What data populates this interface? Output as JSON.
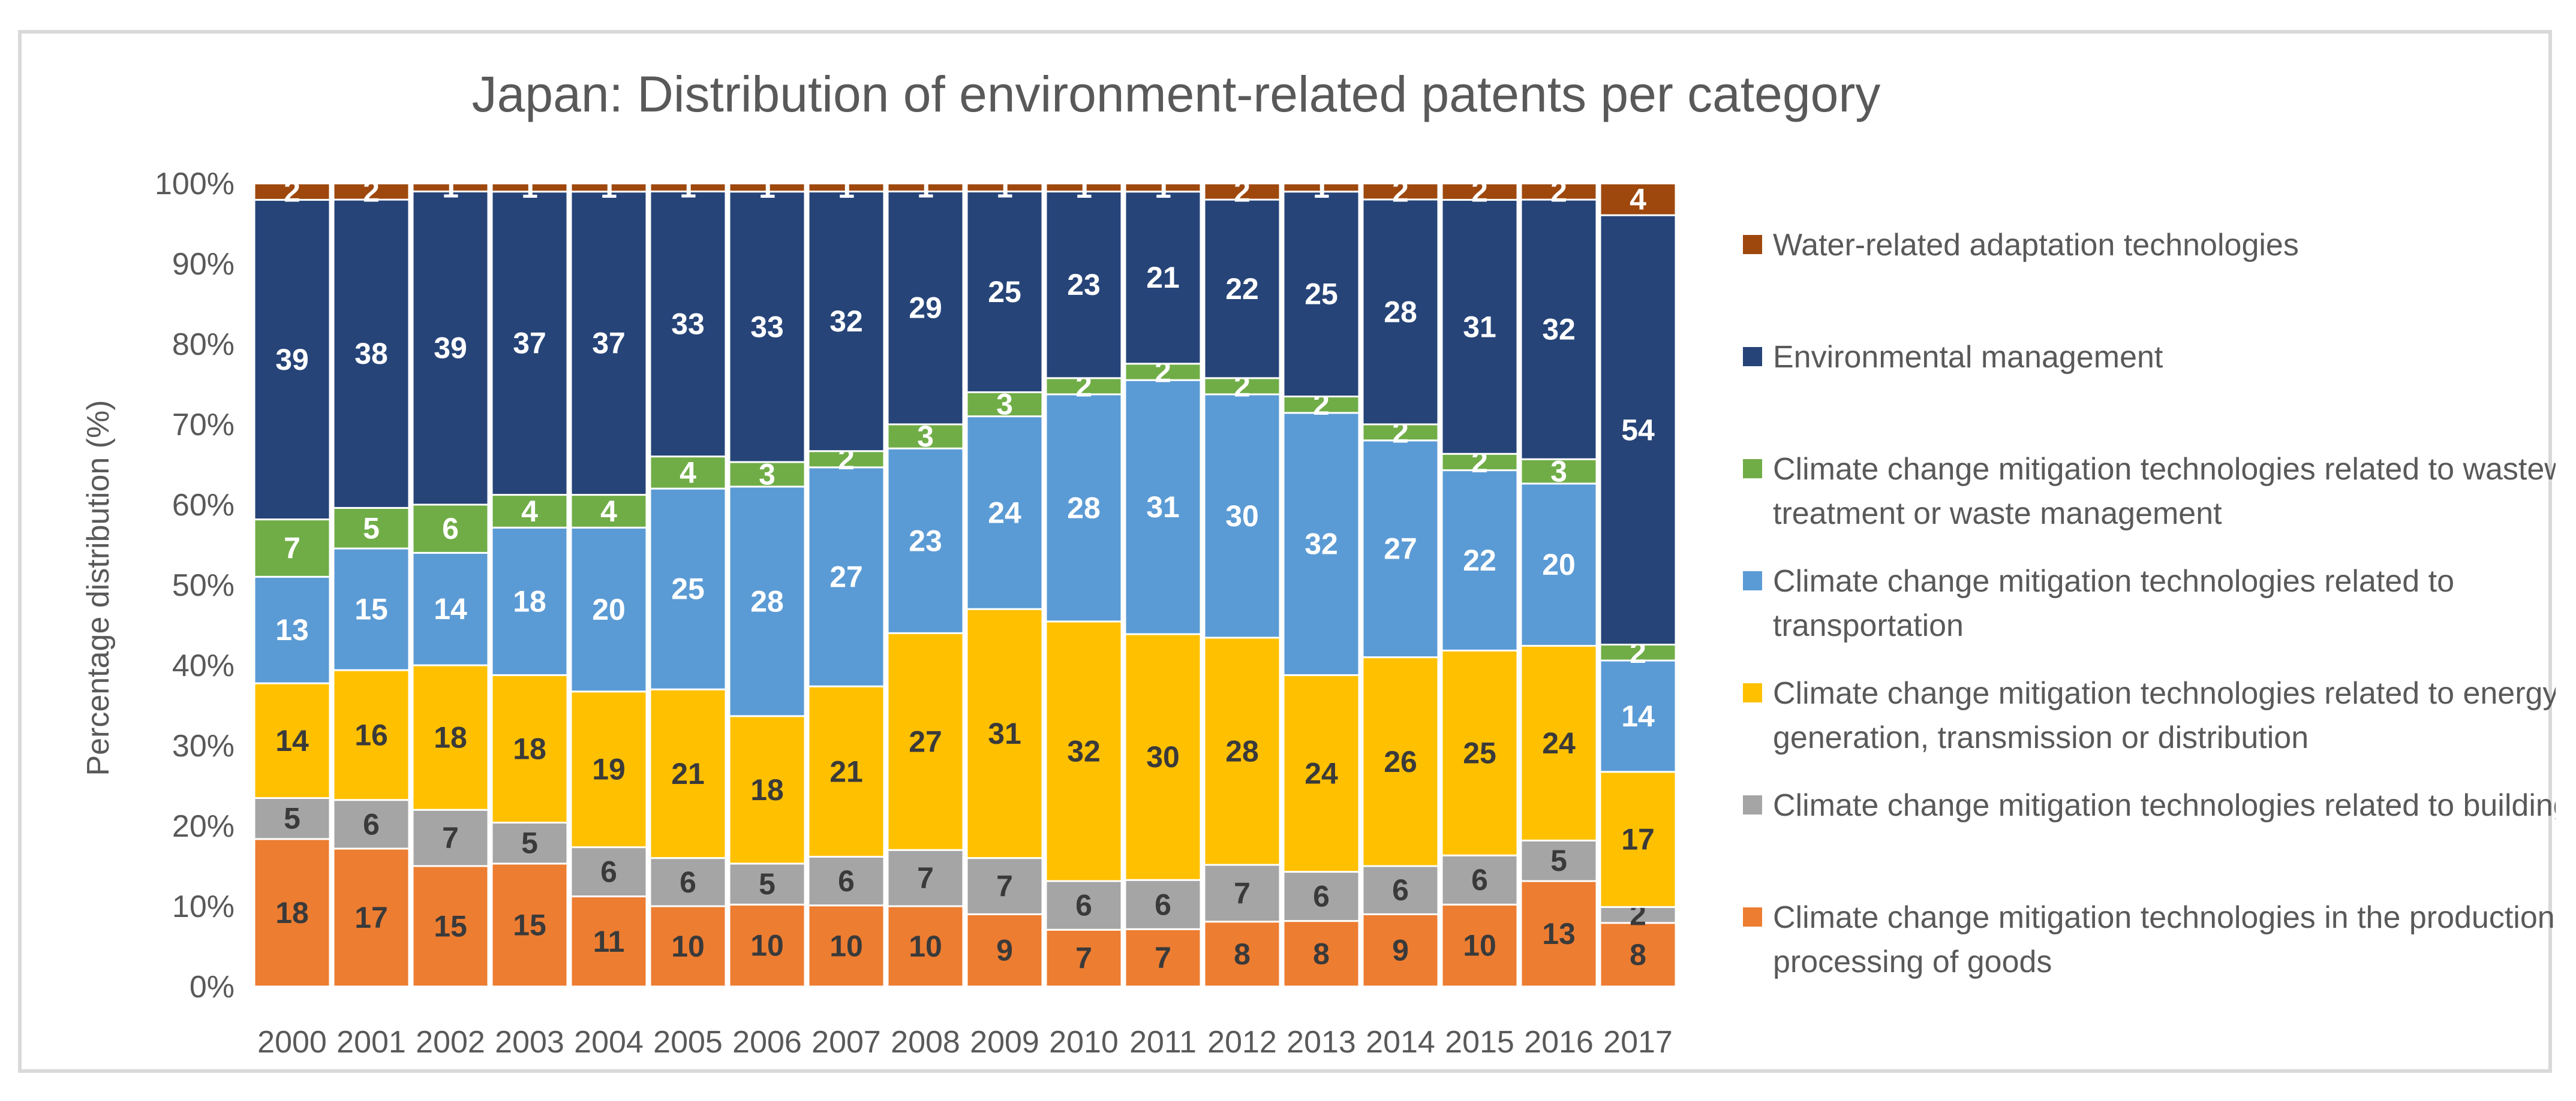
{
  "chart_data": {
    "type": "bar",
    "stacked": true,
    "percent": true,
    "title": "Japan: Distribution of environment-related patents per category",
    "xlabel": "",
    "ylabel": "Percentage distribution (%)",
    "ylim": [
      0,
      100
    ],
    "yticks": [
      "0%",
      "10%",
      "20%",
      "30%",
      "40%",
      "50%",
      "60%",
      "70%",
      "80%",
      "90%",
      "100%"
    ],
    "legend_position": "right",
    "categories": [
      "2000",
      "2001",
      "2002",
      "2003",
      "2004",
      "2005",
      "2006",
      "2007",
      "2008",
      "2009",
      "2010",
      "2011",
      "2012",
      "2013",
      "2014",
      "2015",
      "2016",
      "2017"
    ],
    "series": [
      {
        "name": "Climate change mitigation technologies in the production or processing of goods",
        "color": "#ed7d31",
        "label_color": "#3a3a3a",
        "values": [
          18,
          17,
          15,
          15,
          11,
          10,
          10,
          10,
          10,
          9,
          7,
          7,
          8,
          8,
          9,
          10,
          13,
          8
        ]
      },
      {
        "name": "Climate change mitigation technologies related to buildings",
        "color": "#a5a5a5",
        "label_color": "#3a3a3a",
        "values": [
          5,
          6,
          7,
          5,
          6,
          6,
          5,
          6,
          7,
          7,
          6,
          6,
          7,
          6,
          6,
          6,
          5,
          2
        ]
      },
      {
        "name": "Climate change mitigation technologies related to energy generation, transmission or distribution",
        "color": "#ffc000",
        "label_color": "#3a3a3a",
        "values": [
          14,
          16,
          18,
          18,
          19,
          21,
          18,
          21,
          27,
          31,
          32,
          30,
          28,
          24,
          26,
          25,
          24,
          17
        ]
      },
      {
        "name": "Climate change mitigation technologies related to transportation",
        "color": "#5b9bd5",
        "label_color": "#ffffff",
        "values": [
          13,
          15,
          14,
          18,
          20,
          25,
          28,
          27,
          23,
          24,
          28,
          31,
          30,
          32,
          27,
          22,
          20,
          14
        ]
      },
      {
        "name": "Climate change mitigation technologies related to wastewater treatment or waste management",
        "color": "#70ad47",
        "label_color": "#ffffff",
        "values": [
          7,
          5,
          6,
          4,
          4,
          4,
          3,
          2,
          3,
          3,
          2,
          2,
          2,
          2,
          2,
          2,
          3,
          2
        ]
      },
      {
        "name": "Environmental management",
        "color": "#264478",
        "label_color": "#ffffff",
        "values": [
          39,
          38,
          39,
          37,
          37,
          33,
          33,
          32,
          29,
          25,
          23,
          21,
          22,
          25,
          28,
          31,
          32,
          54
        ]
      },
      {
        "name": "Water-related adaptation technologies",
        "color": "#9e480e",
        "label_color": "#ffffff",
        "values": [
          2,
          2,
          1,
          1,
          1,
          1,
          1,
          1,
          1,
          1,
          1,
          1,
          2,
          1,
          2,
          2,
          2,
          4
        ]
      }
    ]
  }
}
